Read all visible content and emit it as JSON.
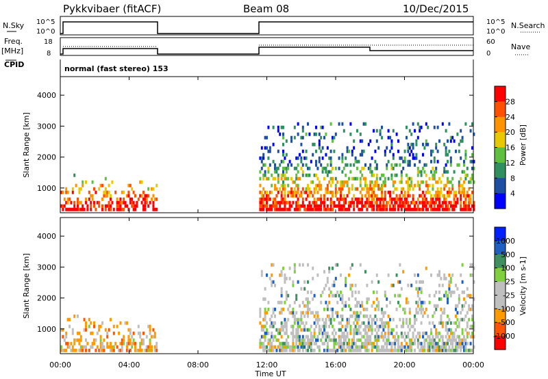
{
  "header": {
    "radar": "Pykkvibaer (fitACF)",
    "beam": "Beam 08",
    "date": "10/Dec/2015"
  },
  "param_panels": {
    "nsky_label": "N.Sky",
    "nsky_ticks": [
      "10^5",
      "10^0"
    ],
    "nsearch_label": "N.Search",
    "nsearch_ticks": [
      "10^5",
      "10^0"
    ],
    "freq_label_1": "Freq.",
    "freq_label_2": "[MHz]",
    "freq_ticks": [
      "18",
      "8"
    ],
    "nave_label": "Nave",
    "nave_ticks": [
      "60",
      "0"
    ],
    "cpid_label": "CPID",
    "cpid_text": "normal (fast stereo) 153"
  },
  "colors": {
    "power": [
      "#0000ff",
      "#1f4fa0",
      "#2f8f5f",
      "#5fbf3f",
      "#e8c800",
      "#ff9400",
      "#ff5000",
      "#ff0000"
    ],
    "velocity": [
      "#ff0000",
      "#ff5500",
      "#ff9a00",
      "#bfbfbf",
      "#bfbfbf",
      "#7fcf3f",
      "#3f8f5f",
      "#1f5fbf",
      "#0020ff"
    ]
  },
  "chart_data": [
    {
      "type": "heatmap",
      "title": "Power",
      "xlabel": "",
      "ylabel": "Slant Range [km]",
      "colorbar_label": "Power [dB]",
      "colorbar_ticks": [
        "28",
        "24",
        "20",
        "16",
        "12",
        "8",
        "4"
      ],
      "xlim": [
        "00:00",
        "24:00"
      ],
      "ylim": [
        200,
        4600
      ],
      "x_ticks": [
        "00:00",
        "04:00",
        "08:00",
        "12:00",
        "16:00",
        "20:00",
        "00:00"
      ],
      "y_ticks": [
        1000,
        2000,
        3000,
        4000
      ],
      "echo_regions": [
        {
          "t_start": 0.0,
          "t_end": 5.6,
          "r_min": 200,
          "r_max": 1400,
          "level": "mixed low-high"
        },
        {
          "t_start": 11.5,
          "t_end": 24.0,
          "r_min": 200,
          "r_max": 3100,
          "level": "mixed, strongest near 400-800 km"
        }
      ]
    },
    {
      "type": "heatmap",
      "title": "Velocity",
      "xlabel": "Time UT",
      "ylabel": "Slant Range [km]",
      "colorbar_label": "Velocity [m s-1]",
      "colorbar_ticks": [
        "1000",
        "500",
        "100",
        "25",
        "-25",
        "-100",
        "-500",
        "-1000"
      ],
      "xlim": [
        "00:00",
        "24:00"
      ],
      "ylim": [
        200,
        4600
      ],
      "x_ticks": [
        "00:00",
        "04:00",
        "08:00",
        "12:00",
        "16:00",
        "20:00",
        "00:00"
      ],
      "y_ticks": [
        1000,
        2000,
        3000,
        4000
      ],
      "echo_regions": [
        {
          "t_start": 0.0,
          "t_end": 5.6,
          "r_min": 200,
          "r_max": 1400,
          "level": "mostly -25 to -500"
        },
        {
          "t_start": 11.5,
          "t_end": 24.0,
          "r_min": 200,
          "r_max": 3100,
          "level": "mostly ground scatter, -25 to 25"
        }
      ]
    }
  ]
}
